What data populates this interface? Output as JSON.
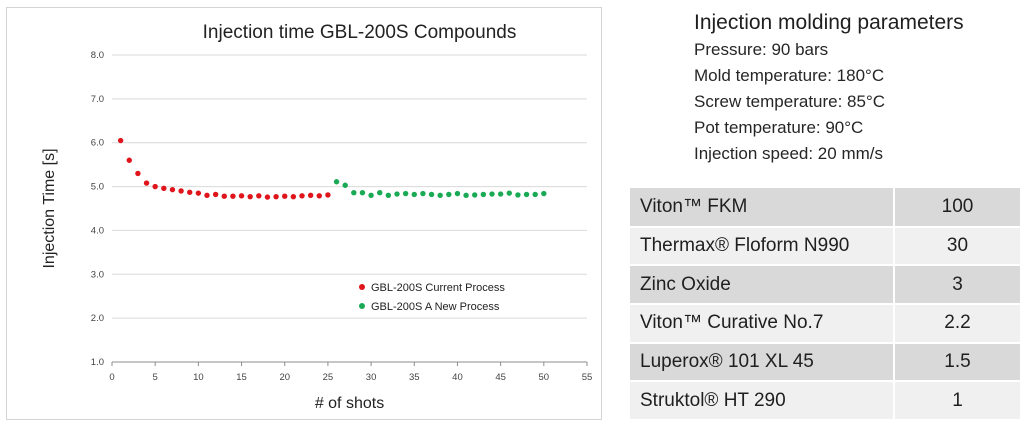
{
  "chart_data": {
    "type": "scatter",
    "title": "Injection time GBL-200S Compounds",
    "xlabel": "# of shots",
    "ylabel": "Injection Time [s]",
    "xlim": [
      0,
      55
    ],
    "ylim": [
      1.0,
      8.0
    ],
    "x_ticks": [
      "0",
      "5",
      "10",
      "15",
      "20",
      "25",
      "30",
      "35",
      "40",
      "45",
      "50",
      "55"
    ],
    "y_ticks": [
      "1.0",
      "2.0",
      "3.0",
      "4.0",
      "5.0",
      "6.0",
      "7.0",
      "8.0"
    ],
    "grid": "horizontal",
    "legend_position": "lower-right",
    "series": [
      {
        "name": "GBL-200S Current Process",
        "color": "#e0141b",
        "points": [
          [
            1,
            6.05
          ],
          [
            2,
            5.6
          ],
          [
            3,
            5.3
          ],
          [
            4,
            5.08
          ],
          [
            5,
            5.0
          ],
          [
            6,
            4.96
          ],
          [
            7,
            4.93
          ],
          [
            8,
            4.9
          ],
          [
            9,
            4.87
          ],
          [
            10,
            4.85
          ],
          [
            11,
            4.8
          ],
          [
            12,
            4.82
          ],
          [
            13,
            4.78
          ],
          [
            14,
            4.78
          ],
          [
            15,
            4.79
          ],
          [
            16,
            4.77
          ],
          [
            17,
            4.79
          ],
          [
            18,
            4.76
          ],
          [
            19,
            4.77
          ],
          [
            20,
            4.78
          ],
          [
            21,
            4.77
          ],
          [
            22,
            4.79
          ],
          [
            23,
            4.8
          ],
          [
            24,
            4.79
          ],
          [
            25,
            4.81
          ]
        ]
      },
      {
        "name": "GBL-200S A New Process",
        "color": "#1aaa55",
        "points": [
          [
            26,
            5.11
          ],
          [
            27,
            5.03
          ],
          [
            28,
            4.86
          ],
          [
            29,
            4.86
          ],
          [
            30,
            4.8
          ],
          [
            31,
            4.86
          ],
          [
            32,
            4.8
          ],
          [
            33,
            4.83
          ],
          [
            34,
            4.84
          ],
          [
            35,
            4.82
          ],
          [
            36,
            4.84
          ],
          [
            37,
            4.82
          ],
          [
            38,
            4.8
          ],
          [
            39,
            4.82
          ],
          [
            40,
            4.84
          ],
          [
            41,
            4.8
          ],
          [
            42,
            4.81
          ],
          [
            43,
            4.82
          ],
          [
            44,
            4.83
          ],
          [
            45,
            4.83
          ],
          [
            46,
            4.85
          ],
          [
            47,
            4.81
          ],
          [
            48,
            4.82
          ],
          [
            49,
            4.82
          ],
          [
            50,
            4.84
          ]
        ]
      }
    ]
  },
  "parameters": {
    "title": "Injection molding parameters",
    "lines": [
      "Pressure: 90 bars",
      "Mold temperature: 180°C",
      "Screw temperature: 85°C",
      "Pot temperature: 90°C",
      "Injection speed: 20 mm/s"
    ]
  },
  "formulation": [
    {
      "name": "Viton™ FKM",
      "amount": "100"
    },
    {
      "name": "Thermax® Floform N990",
      "amount": "30"
    },
    {
      "name": "Zinc Oxide",
      "amount": "3"
    },
    {
      "name": "Viton™ Curative No.7",
      "amount": "2.2"
    },
    {
      "name": "Luperox® 101 XL 45",
      "amount": "1.5"
    },
    {
      "name": "Struktol® HT 290",
      "amount": "1"
    }
  ]
}
